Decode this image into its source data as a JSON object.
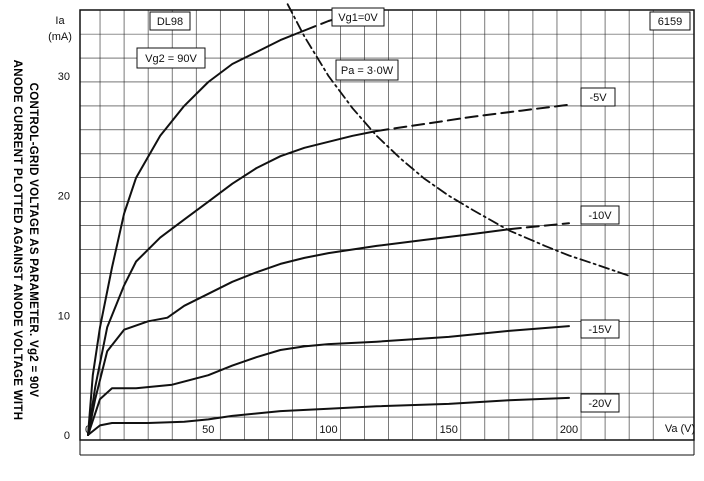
{
  "chart_data": {
    "type": "line",
    "tube_type": "DL98",
    "figure_number": "6159",
    "caption_line1": "ANODE CURRENT PLOTTED AGAINST ANODE VOLTAGE WITH",
    "caption_line2": "CONTROL-GRID VOLTAGE AS PARAMETER.  Vg2 = 90V",
    "x_unit_label": "Va (V)",
    "y_unit_label": "Ia",
    "y_unit": "(mA)",
    "screen_grid_label": "Vg2 = 90V",
    "power_label": "Pa = 3·0W",
    "xlim": [
      0,
      235
    ],
    "ylim": [
      0,
      36
    ],
    "x_ticks": [
      0,
      50,
      100,
      150,
      200
    ],
    "y_ticks": [
      0,
      10,
      20,
      30
    ],
    "grid": true,
    "series": [
      {
        "name": "Vg1=0V",
        "style": "solid_then_dashed",
        "dash_from": 90,
        "points": [
          [
            0,
            0
          ],
          [
            2,
            5
          ],
          [
            5,
            9
          ],
          [
            10,
            14
          ],
          [
            15,
            18.5
          ],
          [
            20,
            21.5
          ],
          [
            30,
            25
          ],
          [
            40,
            27.5
          ],
          [
            50,
            29.5
          ],
          [
            60,
            31
          ],
          [
            70,
            32
          ],
          [
            80,
            33
          ],
          [
            90,
            33.8
          ],
          [
            100,
            34.6
          ],
          [
            110,
            35.2
          ],
          [
            115,
            35.5
          ]
        ]
      },
      {
        "name": "-5V",
        "style": "solid_then_dashed",
        "dash_from": 120,
        "points": [
          [
            0,
            0
          ],
          [
            3,
            4
          ],
          [
            8,
            9
          ],
          [
            15,
            12.5
          ],
          [
            20,
            14.5
          ],
          [
            30,
            16.5
          ],
          [
            40,
            18
          ],
          [
            50,
            19.5
          ],
          [
            60,
            21
          ],
          [
            70,
            22.3
          ],
          [
            80,
            23.3
          ],
          [
            90,
            24
          ],
          [
            100,
            24.5
          ],
          [
            110,
            25
          ],
          [
            120,
            25.4
          ],
          [
            140,
            26
          ],
          [
            160,
            26.6
          ],
          [
            180,
            27.1
          ],
          [
            200,
            27.6
          ]
        ]
      },
      {
        "name": "-10V",
        "style": "solid_then_dashed",
        "dash_from": 175,
        "points": [
          [
            0,
            0
          ],
          [
            3,
            3
          ],
          [
            8,
            7
          ],
          [
            15,
            8.8
          ],
          [
            25,
            9.5
          ],
          [
            33,
            9.8
          ],
          [
            40,
            10.8
          ],
          [
            50,
            11.8
          ],
          [
            60,
            12.8
          ],
          [
            70,
            13.6
          ],
          [
            80,
            14.3
          ],
          [
            90,
            14.8
          ],
          [
            100,
            15.2
          ],
          [
            120,
            15.8
          ],
          [
            140,
            16.3
          ],
          [
            160,
            16.8
          ],
          [
            175,
            17.2
          ],
          [
            190,
            17.5
          ],
          [
            200,
            17.7
          ]
        ]
      },
      {
        "name": "-15V",
        "style": "solid",
        "points": [
          [
            0,
            0
          ],
          [
            5,
            3
          ],
          [
            10,
            3.9
          ],
          [
            20,
            3.9
          ],
          [
            35,
            4.2
          ],
          [
            50,
            5
          ],
          [
            60,
            5.8
          ],
          [
            70,
            6.5
          ],
          [
            80,
            7.1
          ],
          [
            90,
            7.4
          ],
          [
            100,
            7.6
          ],
          [
            120,
            7.8
          ],
          [
            150,
            8.2
          ],
          [
            175,
            8.7
          ],
          [
            200,
            9.1
          ]
        ]
      },
      {
        "name": "-20V",
        "style": "solid",
        "points": [
          [
            0,
            0
          ],
          [
            5,
            0.8
          ],
          [
            10,
            1
          ],
          [
            25,
            1
          ],
          [
            40,
            1.1
          ],
          [
            50,
            1.3
          ],
          [
            60,
            1.6
          ],
          [
            70,
            1.8
          ],
          [
            80,
            2
          ],
          [
            100,
            2.2
          ],
          [
            120,
            2.4
          ],
          [
            150,
            2.6
          ],
          [
            175,
            2.9
          ],
          [
            200,
            3.1
          ]
        ]
      },
      {
        "name": "Pa=3·0W",
        "style": "dash_dot",
        "points": [
          [
            83,
            36
          ],
          [
            90,
            33.3
          ],
          [
            100,
            30
          ],
          [
            110,
            27.3
          ],
          [
            120,
            25
          ],
          [
            130,
            23.1
          ],
          [
            140,
            21.4
          ],
          [
            150,
            20
          ],
          [
            160,
            18.8
          ],
          [
            175,
            17.1
          ],
          [
            190,
            15.8
          ],
          [
            200,
            15
          ],
          [
            212,
            14.2
          ],
          [
            225,
            13.3
          ]
        ]
      }
    ],
    "curve_labels": [
      "Vg1=0V",
      "-5V",
      "-10V",
      "-15V",
      "-20V"
    ]
  }
}
